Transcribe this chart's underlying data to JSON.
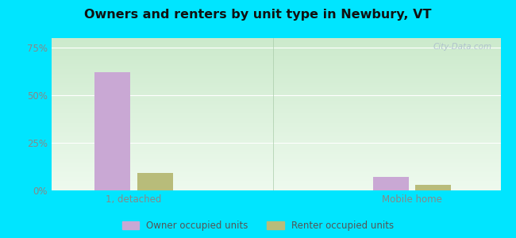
{
  "title": "Owners and renters by unit type in Newbury, VT",
  "categories": [
    "1, detached",
    "Mobile home"
  ],
  "owner_values": [
    62.0,
    7.0
  ],
  "renter_values": [
    9.0,
    3.0
  ],
  "owner_color": "#c9a8d4",
  "renter_color": "#b8bc7a",
  "yticks": [
    0,
    25,
    50,
    75
  ],
  "ytick_labels": [
    "0%",
    "25%",
    "50%",
    "75%"
  ],
  "ylim": [
    0,
    80
  ],
  "outer_color": "#00e5ff",
  "legend_owner": "Owner occupied units",
  "legend_renter": "Renter occupied units",
  "watermark": "City-Data.com",
  "bar_width": 0.28,
  "group_positions": [
    1.0,
    3.2
  ],
  "xlim": [
    0.35,
    3.9
  ],
  "gradient_top": "#cceacc",
  "gradient_bottom": "#eefaee",
  "grid_color": "#ddeecc",
  "tick_color": "#888888",
  "title_color": "#111111"
}
